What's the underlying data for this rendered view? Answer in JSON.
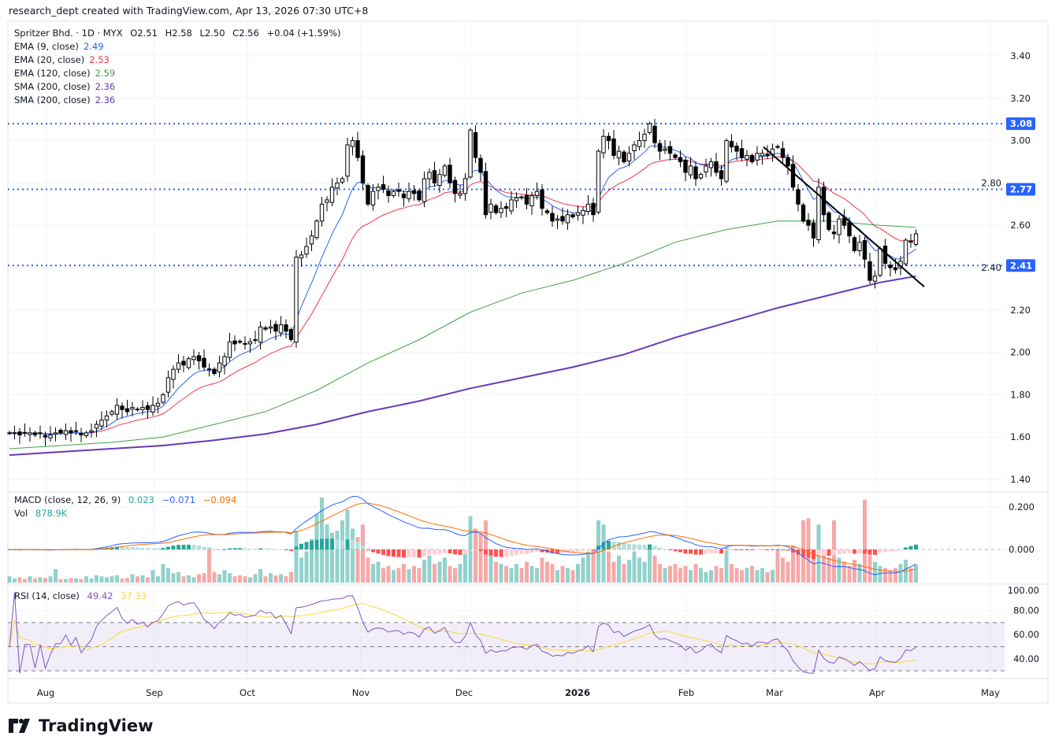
{
  "header": "research_dept created with TradingView.com, Apr 13, 2026 07:30 UTC+8",
  "symbol": {
    "name": "Spritzer Bhd. · 1D · MYX",
    "open": "O2.51",
    "high": "H2.58",
    "low": "L2.50",
    "close": "C2.56",
    "change": "+0.04 (+1.59%)"
  },
  "indicators": [
    {
      "label": "EMA (9, close)",
      "value": "2.49",
      "color": "#2962ff"
    },
    {
      "label": "EMA (20, close)",
      "value": "2.53",
      "color": "#f23645"
    },
    {
      "label": "EMA (120, close)",
      "value": "2.59",
      "color": "#43a047"
    },
    {
      "label": "SMA (200, close)",
      "value": "2.36",
      "color": "#673ab7"
    },
    {
      "label": "SMA (200, close)",
      "value": "2.36",
      "color": "#673ab7"
    }
  ],
  "macd": {
    "label": "MACD (close, 12, 26, 9)",
    "hist": "0.023",
    "macd": "−0.071",
    "signal": "−0.094",
    "colors": {
      "hist": "#26a69a",
      "macd": "#2962ff",
      "signal": "#ff6d00"
    }
  },
  "vol": {
    "label": "Vol",
    "value": "878.9K"
  },
  "rsi": {
    "label": "RSI (14, close)",
    "value": "49.42",
    "ma": "37.33",
    "colors": {
      "rsi": "#7e57c2",
      "ma": "#fdd835"
    }
  },
  "logo": "TradingView",
  "chart_data": {
    "type": "candlestick",
    "price_axis": {
      "ticks": [
        "3.40",
        "3.20",
        "3.00",
        "2.80",
        "2.60",
        "2.40",
        "2.20",
        "2.00",
        "1.80",
        "1.60",
        "1.40"
      ],
      "range": [
        1.4,
        3.5
      ]
    },
    "time_axis": {
      "ticks": [
        "Aug",
        "Sep",
        "Oct",
        "Nov",
        "Dec",
        "2026",
        "Feb",
        "Mar",
        "Apr",
        "May"
      ]
    },
    "horizontal_levels": [
      {
        "value": "3.08",
        "color": "#2962ff"
      },
      {
        "value": "2.77",
        "color": "#2962ff"
      },
      {
        "value": "2.41",
        "color": "#2962ff"
      }
    ],
    "trendline": {
      "from": 2.97,
      "to": 2.31,
      "color": "#000000"
    },
    "macd_axis": [
      "0.200",
      "0.000"
    ],
    "rsi_axis": [
      "100.00",
      "80.00",
      "60.00",
      "40.00"
    ],
    "rsi_bands": [
      70,
      50,
      30
    ],
    "closes": [
      1.62,
      1.62,
      1.61,
      1.62,
      1.62,
      1.61,
      1.62,
      1.6,
      1.61,
      1.62,
      1.62,
      1.63,
      1.62,
      1.63,
      1.61,
      1.62,
      1.63,
      1.66,
      1.68,
      1.7,
      1.72,
      1.75,
      1.73,
      1.72,
      1.74,
      1.73,
      1.74,
      1.73,
      1.75,
      1.76,
      1.8,
      1.88,
      1.92,
      1.95,
      1.94,
      1.97,
      1.98,
      1.96,
      1.93,
      1.92,
      1.9,
      1.95,
      1.98,
      2.05,
      2.04,
      2.05,
      2.04,
      2.05,
      2.06,
      2.12,
      2.11,
      2.12,
      2.1,
      2.13,
      2.1,
      2.06,
      2.45,
      2.46,
      2.5,
      2.55,
      2.62,
      2.7,
      2.72,
      2.78,
      2.8,
      2.82,
      2.98,
      3.0,
      2.92,
      2.8,
      2.7,
      2.76,
      2.78,
      2.77,
      2.74,
      2.76,
      2.76,
      2.73,
      2.76,
      2.75,
      2.72,
      2.82,
      2.85,
      2.8,
      2.84,
      2.88,
      2.8,
      2.75,
      2.75,
      2.82,
      3.05,
      2.92,
      2.85,
      2.65,
      2.7,
      2.66,
      2.68,
      2.68,
      2.72,
      2.73,
      2.73,
      2.7,
      2.74,
      2.76,
      2.68,
      2.66,
      2.62,
      2.63,
      2.62,
      2.65,
      2.64,
      2.66,
      2.67,
      2.7,
      2.65,
      2.95,
      3.02,
      3.0,
      2.93,
      2.95,
      2.9,
      2.94,
      2.98,
      3.0,
      3.03,
      3.08,
      2.99,
      2.95,
      2.96,
      2.94,
      2.92,
      2.9,
      2.85,
      2.88,
      2.82,
      2.84,
      2.88,
      2.9,
      2.85,
      2.82,
      3.0,
      2.97,
      2.95,
      2.92,
      2.93,
      2.9,
      2.94,
      2.94,
      2.93,
      2.96,
      2.97,
      2.92,
      2.88,
      2.78,
      2.7,
      2.62,
      2.6,
      2.54,
      2.78,
      2.65,
      2.58,
      2.56,
      2.63,
      2.6,
      2.55,
      2.48,
      2.52,
      2.44,
      2.34,
      2.36,
      2.49,
      2.42,
      2.4,
      2.39,
      2.43,
      2.53,
      2.52,
      2.56
    ],
    "last_open": 2.51,
    "last_high": 2.58,
    "last_low": 2.5,
    "volume_k": [
      300,
      200,
      250,
      180,
      300,
      200,
      250,
      220,
      300,
      650,
      160,
      170,
      220,
      200,
      170,
      300,
      200,
      350,
      300,
      250,
      320,
      350,
      200,
      220,
      400,
      300,
      350,
      250,
      600,
      300,
      900,
      700,
      450,
      500,
      300,
      350,
      250,
      400,
      450,
      1700,
      500,
      400,
      600,
      450,
      300,
      350,
      300,
      250,
      400,
      650,
      300,
      450,
      350,
      400,
      300,
      500,
      2500,
      1200,
      1500,
      2100,
      3300,
      4100,
      2800,
      2400,
      2500,
      3000,
      3500,
      2600,
      2200,
      2800,
      1200,
      900,
      1000,
      700,
      800,
      600,
      700,
      900,
      650,
      800,
      700,
      1100,
      1300,
      900,
      1000,
      1200,
      800,
      700,
      900,
      1500,
      3200,
      2600,
      2400,
      3000,
      1400,
      1000,
      900,
      800,
      700,
      900,
      700,
      1000,
      800,
      700,
      1200,
      1000,
      900,
      600,
      800,
      700,
      600,
      900,
      1200,
      1500,
      1600,
      3000,
      2800,
      1500,
      1000,
      1300,
      900,
      1100,
      1500,
      1200,
      1000,
      1800,
      1300,
      900,
      700,
      800,
      900,
      700,
      800,
      600,
      900,
      700,
      500,
      600,
      800,
      700,
      1700,
      900,
      700,
      600,
      700,
      800,
      600,
      700,
      500,
      600,
      1600,
      1200,
      1000,
      1800,
      1500,
      3000,
      3100,
      1400,
      2800,
      1600,
      1200,
      3000,
      1200,
      1000,
      800,
      1100,
      900,
      4000,
      1300,
      1000,
      800,
      700,
      600,
      700,
      900,
      1100,
      700,
      879
    ],
    "ema120": [
      1.545,
      1.56,
      1.575,
      1.6,
      1.66,
      1.72,
      1.82,
      1.95,
      2.06,
      2.19,
      2.28,
      2.34,
      2.42,
      2.52,
      2.58,
      2.62,
      2.62,
      2.6,
      2.59
    ],
    "sma200": [
      1.515,
      1.53,
      1.545,
      1.56,
      1.585,
      1.615,
      1.66,
      1.72,
      1.77,
      1.83,
      1.88,
      1.93,
      1.99,
      2.07,
      2.14,
      2.21,
      2.27,
      2.33,
      2.36
    ]
  }
}
